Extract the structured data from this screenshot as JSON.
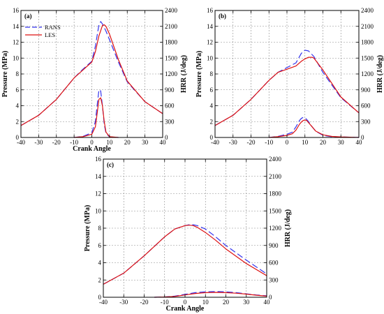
{
  "series_styles": {
    "RANS": {
      "color": "#3333ee",
      "dash": "9,4"
    },
    "LES": {
      "color": "#dd1111",
      "dash": ""
    }
  },
  "legend": {
    "entries": [
      "RANS",
      "LES"
    ],
    "panel": 0
  },
  "chart_data": [
    {
      "type": "line",
      "panel_label": "(a)",
      "xlabel": "Crank Angle",
      "ylabel": "Pressure (MPa)",
      "y2label": "HRR (J/deg)",
      "xlim": [
        -40,
        40
      ],
      "ylim": [
        0,
        16
      ],
      "y2lim": [
        0,
        2400
      ],
      "xticks": [
        "-40",
        "-30",
        "-20",
        "-10",
        "0",
        "10",
        "20",
        "30",
        "40"
      ],
      "yticks": [
        "0",
        "2",
        "4",
        "6",
        "8",
        "10",
        "12",
        "14",
        "16"
      ],
      "y2ticks": [
        "0",
        "300",
        "600",
        "900",
        "1200",
        "1500",
        "1800",
        "2100",
        "2400"
      ],
      "grid": true,
      "series": [
        {
          "name": "RANS",
          "axis": "left",
          "x": [
            -40,
            -30,
            -20,
            -10,
            -5,
            0,
            2,
            4,
            5,
            6,
            8,
            10,
            15,
            20,
            30,
            40
          ],
          "y": [
            1.5,
            2.8,
            4.8,
            7.5,
            8.6,
            9.6,
            11.5,
            14.2,
            14.6,
            14.3,
            13.4,
            12.3,
            9.5,
            7.0,
            4.5,
            3.0
          ]
        },
        {
          "name": "LES",
          "axis": "left",
          "x": [
            -40,
            -30,
            -20,
            -10,
            -5,
            0,
            2,
            4,
            6,
            7,
            8,
            10,
            15,
            20,
            30,
            40
          ],
          "y": [
            1.5,
            2.8,
            4.8,
            7.5,
            8.5,
            9.5,
            10.8,
            12.8,
            14.1,
            14.2,
            14.0,
            13.0,
            9.8,
            7.1,
            4.5,
            3.0
          ]
        },
        {
          "name": "RANS",
          "axis": "right",
          "x": [
            -10,
            -5,
            0,
            2,
            3,
            4,
            5,
            6,
            7,
            8,
            10,
            15
          ],
          "y": [
            0,
            20,
            90,
            300,
            600,
            900,
            880,
            600,
            250,
            80,
            10,
            0
          ]
        },
        {
          "name": "LES",
          "axis": "right",
          "x": [
            -10,
            -5,
            0,
            2,
            3,
            4,
            5,
            6,
            7,
            8,
            10,
            15
          ],
          "y": [
            0,
            15,
            60,
            200,
            450,
            720,
            750,
            600,
            300,
            100,
            15,
            0
          ]
        }
      ]
    },
    {
      "type": "line",
      "panel_label": "(b)",
      "xlabel": "",
      "ylabel": "Pressure (MPa)",
      "y2label": "HRR (J/deg)",
      "xlim": [
        -40,
        40
      ],
      "ylim": [
        0,
        16
      ],
      "y2lim": [
        0,
        2400
      ],
      "xticks": [
        "-40",
        "-30",
        "-20",
        "-10",
        "0",
        "10",
        "20",
        "30",
        "40"
      ],
      "yticks": [
        "0",
        "2",
        "4",
        "6",
        "8",
        "10",
        "12",
        "14",
        "16"
      ],
      "y2ticks": [
        "0",
        "300",
        "600",
        "900",
        "1200",
        "1500",
        "1800",
        "2100",
        "2400"
      ],
      "grid": true,
      "series": [
        {
          "name": "RANS",
          "axis": "left",
          "x": [
            -40,
            -30,
            -20,
            -10,
            -5,
            0,
            5,
            8,
            10,
            12,
            15,
            20,
            30,
            40
          ],
          "y": [
            1.5,
            2.8,
            4.8,
            7.2,
            8.2,
            8.8,
            9.4,
            10.6,
            11.0,
            10.9,
            10.2,
            8.2,
            5.0,
            3.1
          ]
        },
        {
          "name": "LES",
          "axis": "left",
          "x": [
            -40,
            -30,
            -20,
            -10,
            -5,
            0,
            5,
            8,
            10,
            12,
            14,
            15,
            20,
            30,
            40
          ],
          "y": [
            1.5,
            2.8,
            4.8,
            7.2,
            8.2,
            8.6,
            9.0,
            9.6,
            9.9,
            10.1,
            10.1,
            10.0,
            8.5,
            5.1,
            3.1
          ]
        },
        {
          "name": "RANS",
          "axis": "right",
          "x": [
            -10,
            -5,
            0,
            3,
            5,
            7,
            8,
            9,
            10,
            11,
            12,
            14,
            16,
            20,
            25,
            30,
            40
          ],
          "y": [
            0,
            20,
            60,
            100,
            200,
            320,
            360,
            380,
            370,
            340,
            300,
            200,
            120,
            40,
            15,
            10,
            0
          ]
        },
        {
          "name": "LES",
          "axis": "right",
          "x": [
            -10,
            -5,
            0,
            3,
            5,
            7,
            8,
            9,
            10,
            11,
            12,
            14,
            16,
            20,
            25,
            30,
            40
          ],
          "y": [
            0,
            15,
            40,
            70,
            140,
            250,
            290,
            320,
            330,
            320,
            280,
            200,
            120,
            50,
            20,
            10,
            0
          ]
        }
      ]
    },
    {
      "type": "line",
      "panel_label": "(c)",
      "xlabel": "Crank Angle",
      "ylabel": "Pressure (MPa)",
      "y2label": "HRR (J/deg)",
      "xlim": [
        -40,
        40
      ],
      "ylim": [
        0,
        16
      ],
      "y2lim": [
        0,
        2400
      ],
      "xticks": [
        "-40",
        "-30",
        "-20",
        "-10",
        "0",
        "10",
        "20",
        "30",
        "40"
      ],
      "yticks": [
        "0",
        "2",
        "4",
        "6",
        "8",
        "10",
        "12",
        "14",
        "16"
      ],
      "y2ticks": [
        "0",
        "300",
        "600",
        "900",
        "1200",
        "1500",
        "1800",
        "2100",
        "2400"
      ],
      "grid": true,
      "series": [
        {
          "name": "RANS",
          "axis": "left",
          "x": [
            -40,
            -30,
            -20,
            -10,
            -5,
            0,
            2,
            4,
            6,
            10,
            15,
            20,
            30,
            40
          ],
          "y": [
            1.5,
            2.8,
            4.8,
            7.0,
            7.9,
            8.3,
            8.4,
            8.4,
            8.3,
            7.9,
            7.0,
            6.0,
            4.3,
            2.7
          ]
        },
        {
          "name": "LES",
          "axis": "left",
          "x": [
            -40,
            -30,
            -20,
            -10,
            -5,
            0,
            2,
            4,
            6,
            10,
            15,
            20,
            30,
            40
          ],
          "y": [
            1.5,
            2.8,
            4.8,
            7.0,
            7.9,
            8.3,
            8.35,
            8.3,
            8.1,
            7.5,
            6.6,
            5.6,
            3.9,
            2.5
          ]
        },
        {
          "name": "RANS",
          "axis": "right",
          "x": [
            -15,
            -10,
            -5,
            0,
            5,
            10,
            15,
            20,
            25,
            30,
            35,
            40
          ],
          "y": [
            0,
            5,
            20,
            50,
            80,
            95,
            100,
            95,
            80,
            60,
            40,
            25
          ]
        },
        {
          "name": "LES",
          "axis": "right",
          "x": [
            -15,
            -10,
            -5,
            0,
            5,
            10,
            15,
            20,
            25,
            30,
            35,
            40
          ],
          "y": [
            0,
            5,
            15,
            40,
            65,
            80,
            85,
            80,
            70,
            55,
            35,
            20
          ]
        }
      ]
    }
  ]
}
